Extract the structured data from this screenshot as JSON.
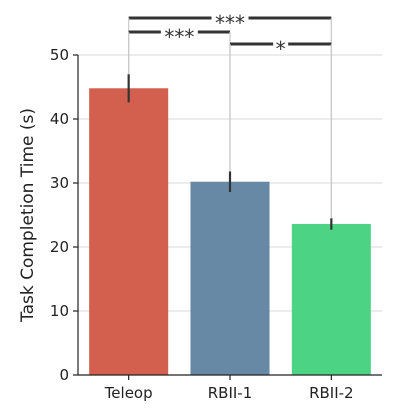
{
  "chart_data": {
    "type": "bar",
    "title": "",
    "xlabel": "",
    "ylabel": "Task Completion Time (s)",
    "ylim": [
      0,
      50
    ],
    "yticks": [
      0,
      10,
      20,
      30,
      40,
      50
    ],
    "grid": true,
    "categories": [
      "Teleop",
      "RBII-1",
      "RBII-2"
    ],
    "values": [
      44.8,
      30.2,
      23.6
    ],
    "error": [
      2.2,
      1.6,
      0.9
    ],
    "colors": [
      "#d35f4f",
      "#6889a6",
      "#4cd484"
    ],
    "significance": [
      {
        "from": "Teleop",
        "to": "RBII-2",
        "label": "***"
      },
      {
        "from": "Teleop",
        "to": "RBII-1",
        "label": "***"
      },
      {
        "from": "RBII-1",
        "to": "RBII-2",
        "label": "*"
      }
    ]
  }
}
